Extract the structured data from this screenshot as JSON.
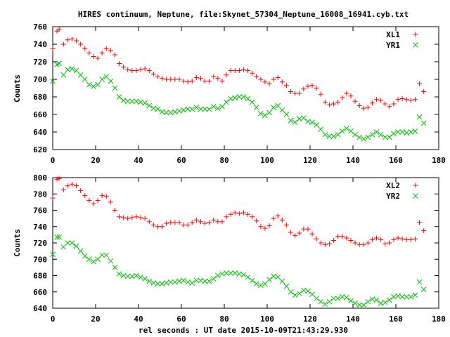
{
  "title": "HIRES continuum, Neptune, file:Skynet_57304_Neptune_16008_16941.cyb.txt",
  "xlabel": "rel seconds : UT date 2015-10-09T21:43:29.930",
  "chart_data": [
    {
      "type": "scatter",
      "ylabel": "Counts",
      "xlim": [
        0,
        180
      ],
      "ylim": [
        620,
        760
      ],
      "xticks": [
        0,
        20,
        40,
        60,
        80,
        100,
        120,
        140,
        160,
        180
      ],
      "yticks": [
        620,
        640,
        660,
        680,
        700,
        720,
        740,
        760
      ],
      "legend_position": "top-right",
      "series": [
        {
          "name": "XL1",
          "marker": "+",
          "color": "#ff0000",
          "x": [
            0,
            2,
            3,
            5,
            7,
            9,
            11,
            13,
            15,
            17,
            19,
            21,
            23,
            25,
            27,
            29,
            31,
            33,
            35,
            37,
            39,
            41,
            43,
            45,
            47,
            49,
            51,
            53,
            55,
            57,
            59,
            61,
            63,
            65,
            67,
            69,
            71,
            73,
            75,
            77,
            79,
            81,
            83,
            85,
            87,
            89,
            91,
            93,
            95,
            97,
            99,
            101,
            103,
            105,
            107,
            109,
            111,
            113,
            115,
            117,
            119,
            121,
            123,
            125,
            127,
            129,
            131,
            133,
            135,
            137,
            139,
            141,
            143,
            145,
            147,
            149,
            151,
            153,
            155,
            157,
            159,
            161,
            163,
            165,
            167,
            169,
            171,
            173
          ],
          "y": [
            735,
            755,
            757,
            740,
            745,
            746,
            744,
            740,
            735,
            730,
            726,
            724,
            730,
            735,
            733,
            728,
            718,
            714,
            711,
            710,
            710,
            711,
            712,
            710,
            706,
            703,
            701,
            700,
            700,
            700,
            700,
            698,
            697,
            698,
            702,
            701,
            698,
            698,
            703,
            701,
            698,
            705,
            710,
            710,
            710,
            711,
            710,
            707,
            703,
            700,
            697,
            695,
            700,
            702,
            697,
            693,
            686,
            684,
            684,
            689,
            692,
            693,
            690,
            683,
            674,
            671,
            672,
            674,
            679,
            684,
            681,
            675,
            670,
            667,
            668,
            673,
            677,
            676,
            672,
            669,
            672,
            677,
            678,
            677,
            676,
            677,
            695,
            686
          ]
        },
        {
          "name": "YR1",
          "marker": "×",
          "color": "#00c000",
          "x": [
            0,
            2,
            3,
            5,
            7,
            9,
            11,
            13,
            15,
            17,
            19,
            21,
            23,
            25,
            27,
            29,
            31,
            33,
            35,
            37,
            39,
            41,
            43,
            45,
            47,
            49,
            51,
            53,
            55,
            57,
            59,
            61,
            63,
            65,
            67,
            69,
            71,
            73,
            75,
            77,
            79,
            81,
            83,
            85,
            87,
            89,
            91,
            93,
            95,
            97,
            99,
            101,
            103,
            105,
            107,
            109,
            111,
            113,
            115,
            117,
            119,
            121,
            123,
            125,
            127,
            129,
            131,
            133,
            135,
            137,
            139,
            141,
            143,
            145,
            147,
            149,
            151,
            153,
            155,
            157,
            159,
            161,
            163,
            165,
            167,
            169,
            171,
            173
          ],
          "y": [
            698,
            717,
            718,
            705,
            711,
            712,
            710,
            705,
            700,
            694,
            692,
            694,
            700,
            703,
            698,
            690,
            680,
            676,
            675,
            675,
            675,
            674,
            673,
            670,
            667,
            666,
            663,
            662,
            662,
            663,
            664,
            665,
            666,
            666,
            668,
            666,
            666,
            666,
            669,
            667,
            669,
            674,
            678,
            679,
            680,
            680,
            678,
            674,
            668,
            661,
            659,
            662,
            668,
            670,
            665,
            660,
            653,
            651,
            655,
            656,
            652,
            651,
            648,
            643,
            637,
            635,
            635,
            637,
            641,
            644,
            641,
            637,
            634,
            632,
            634,
            637,
            640,
            637,
            634,
            634,
            638,
            640,
            640,
            639,
            640,
            641,
            657,
            650
          ]
        }
      ]
    },
    {
      "type": "scatter",
      "ylabel": "Counts",
      "xlim": [
        0,
        180
      ],
      "ylim": [
        640,
        800
      ],
      "xticks": [
        0,
        20,
        40,
        60,
        80,
        100,
        120,
        140,
        160,
        180
      ],
      "yticks": [
        640,
        660,
        680,
        700,
        720,
        740,
        760,
        780,
        800
      ],
      "legend_position": "top-right",
      "series": [
        {
          "name": "XL2",
          "marker": "+",
          "color": "#ff0000",
          "x": [
            0,
            2,
            3,
            5,
            7,
            9,
            11,
            13,
            15,
            17,
            19,
            21,
            23,
            25,
            27,
            29,
            31,
            33,
            35,
            37,
            39,
            41,
            43,
            45,
            47,
            49,
            51,
            53,
            55,
            57,
            59,
            61,
            63,
            65,
            67,
            69,
            71,
            73,
            75,
            77,
            79,
            81,
            83,
            85,
            87,
            89,
            91,
            93,
            95,
            97,
            99,
            101,
            103,
            105,
            107,
            109,
            111,
            113,
            115,
            117,
            119,
            121,
            123,
            125,
            127,
            129,
            131,
            133,
            135,
            137,
            139,
            141,
            143,
            145,
            147,
            149,
            151,
            153,
            155,
            157,
            159,
            161,
            163,
            165,
            167,
            169,
            171,
            173
          ],
          "y": [
            775,
            798,
            799,
            785,
            790,
            792,
            790,
            784,
            778,
            772,
            768,
            772,
            778,
            777,
            770,
            760,
            752,
            751,
            750,
            751,
            752,
            751,
            750,
            746,
            742,
            740,
            740,
            744,
            745,
            745,
            745,
            742,
            742,
            745,
            748,
            746,
            744,
            745,
            748,
            746,
            746,
            752,
            755,
            757,
            756,
            757,
            755,
            752,
            747,
            740,
            738,
            741,
            750,
            753,
            748,
            742,
            733,
            729,
            732,
            737,
            737,
            731,
            725,
            720,
            718,
            719,
            723,
            728,
            728,
            726,
            723,
            720,
            718,
            718,
            720,
            724,
            726,
            724,
            719,
            720,
            724,
            726,
            725,
            724,
            724,
            725,
            745,
            735
          ]
        },
        {
          "name": "YR2",
          "marker": "×",
          "color": "#00c000",
          "x": [
            0,
            2,
            3,
            5,
            7,
            9,
            11,
            13,
            15,
            17,
            19,
            21,
            23,
            25,
            27,
            29,
            31,
            33,
            35,
            37,
            39,
            41,
            43,
            45,
            47,
            49,
            51,
            53,
            55,
            57,
            59,
            61,
            63,
            65,
            67,
            69,
            71,
            73,
            75,
            77,
            79,
            81,
            83,
            85,
            87,
            89,
            91,
            93,
            95,
            97,
            99,
            101,
            103,
            105,
            107,
            109,
            111,
            113,
            115,
            117,
            119,
            121,
            123,
            125,
            127,
            129,
            131,
            133,
            135,
            137,
            139,
            141,
            143,
            145,
            147,
            149,
            151,
            153,
            155,
            157,
            159,
            161,
            163,
            165,
            167,
            169,
            171,
            173
          ],
          "y": [
            706,
            727,
            727,
            715,
            720,
            720,
            716,
            710,
            704,
            700,
            697,
            700,
            705,
            705,
            698,
            690,
            682,
            680,
            679,
            679,
            680,
            678,
            676,
            673,
            671,
            670,
            670,
            671,
            672,
            672,
            673,
            674,
            672,
            671,
            674,
            674,
            673,
            673,
            676,
            680,
            682,
            683,
            683,
            683,
            682,
            681,
            678,
            674,
            670,
            668,
            670,
            675,
            679,
            678,
            673,
            667,
            660,
            656,
            658,
            662,
            661,
            657,
            652,
            648,
            645,
            648,
            652,
            652,
            654,
            653,
            649,
            646,
            644,
            644,
            648,
            651,
            650,
            646,
            647,
            650,
            654,
            655,
            654,
            654,
            654,
            656,
            672,
            663
          ]
        }
      ]
    }
  ]
}
